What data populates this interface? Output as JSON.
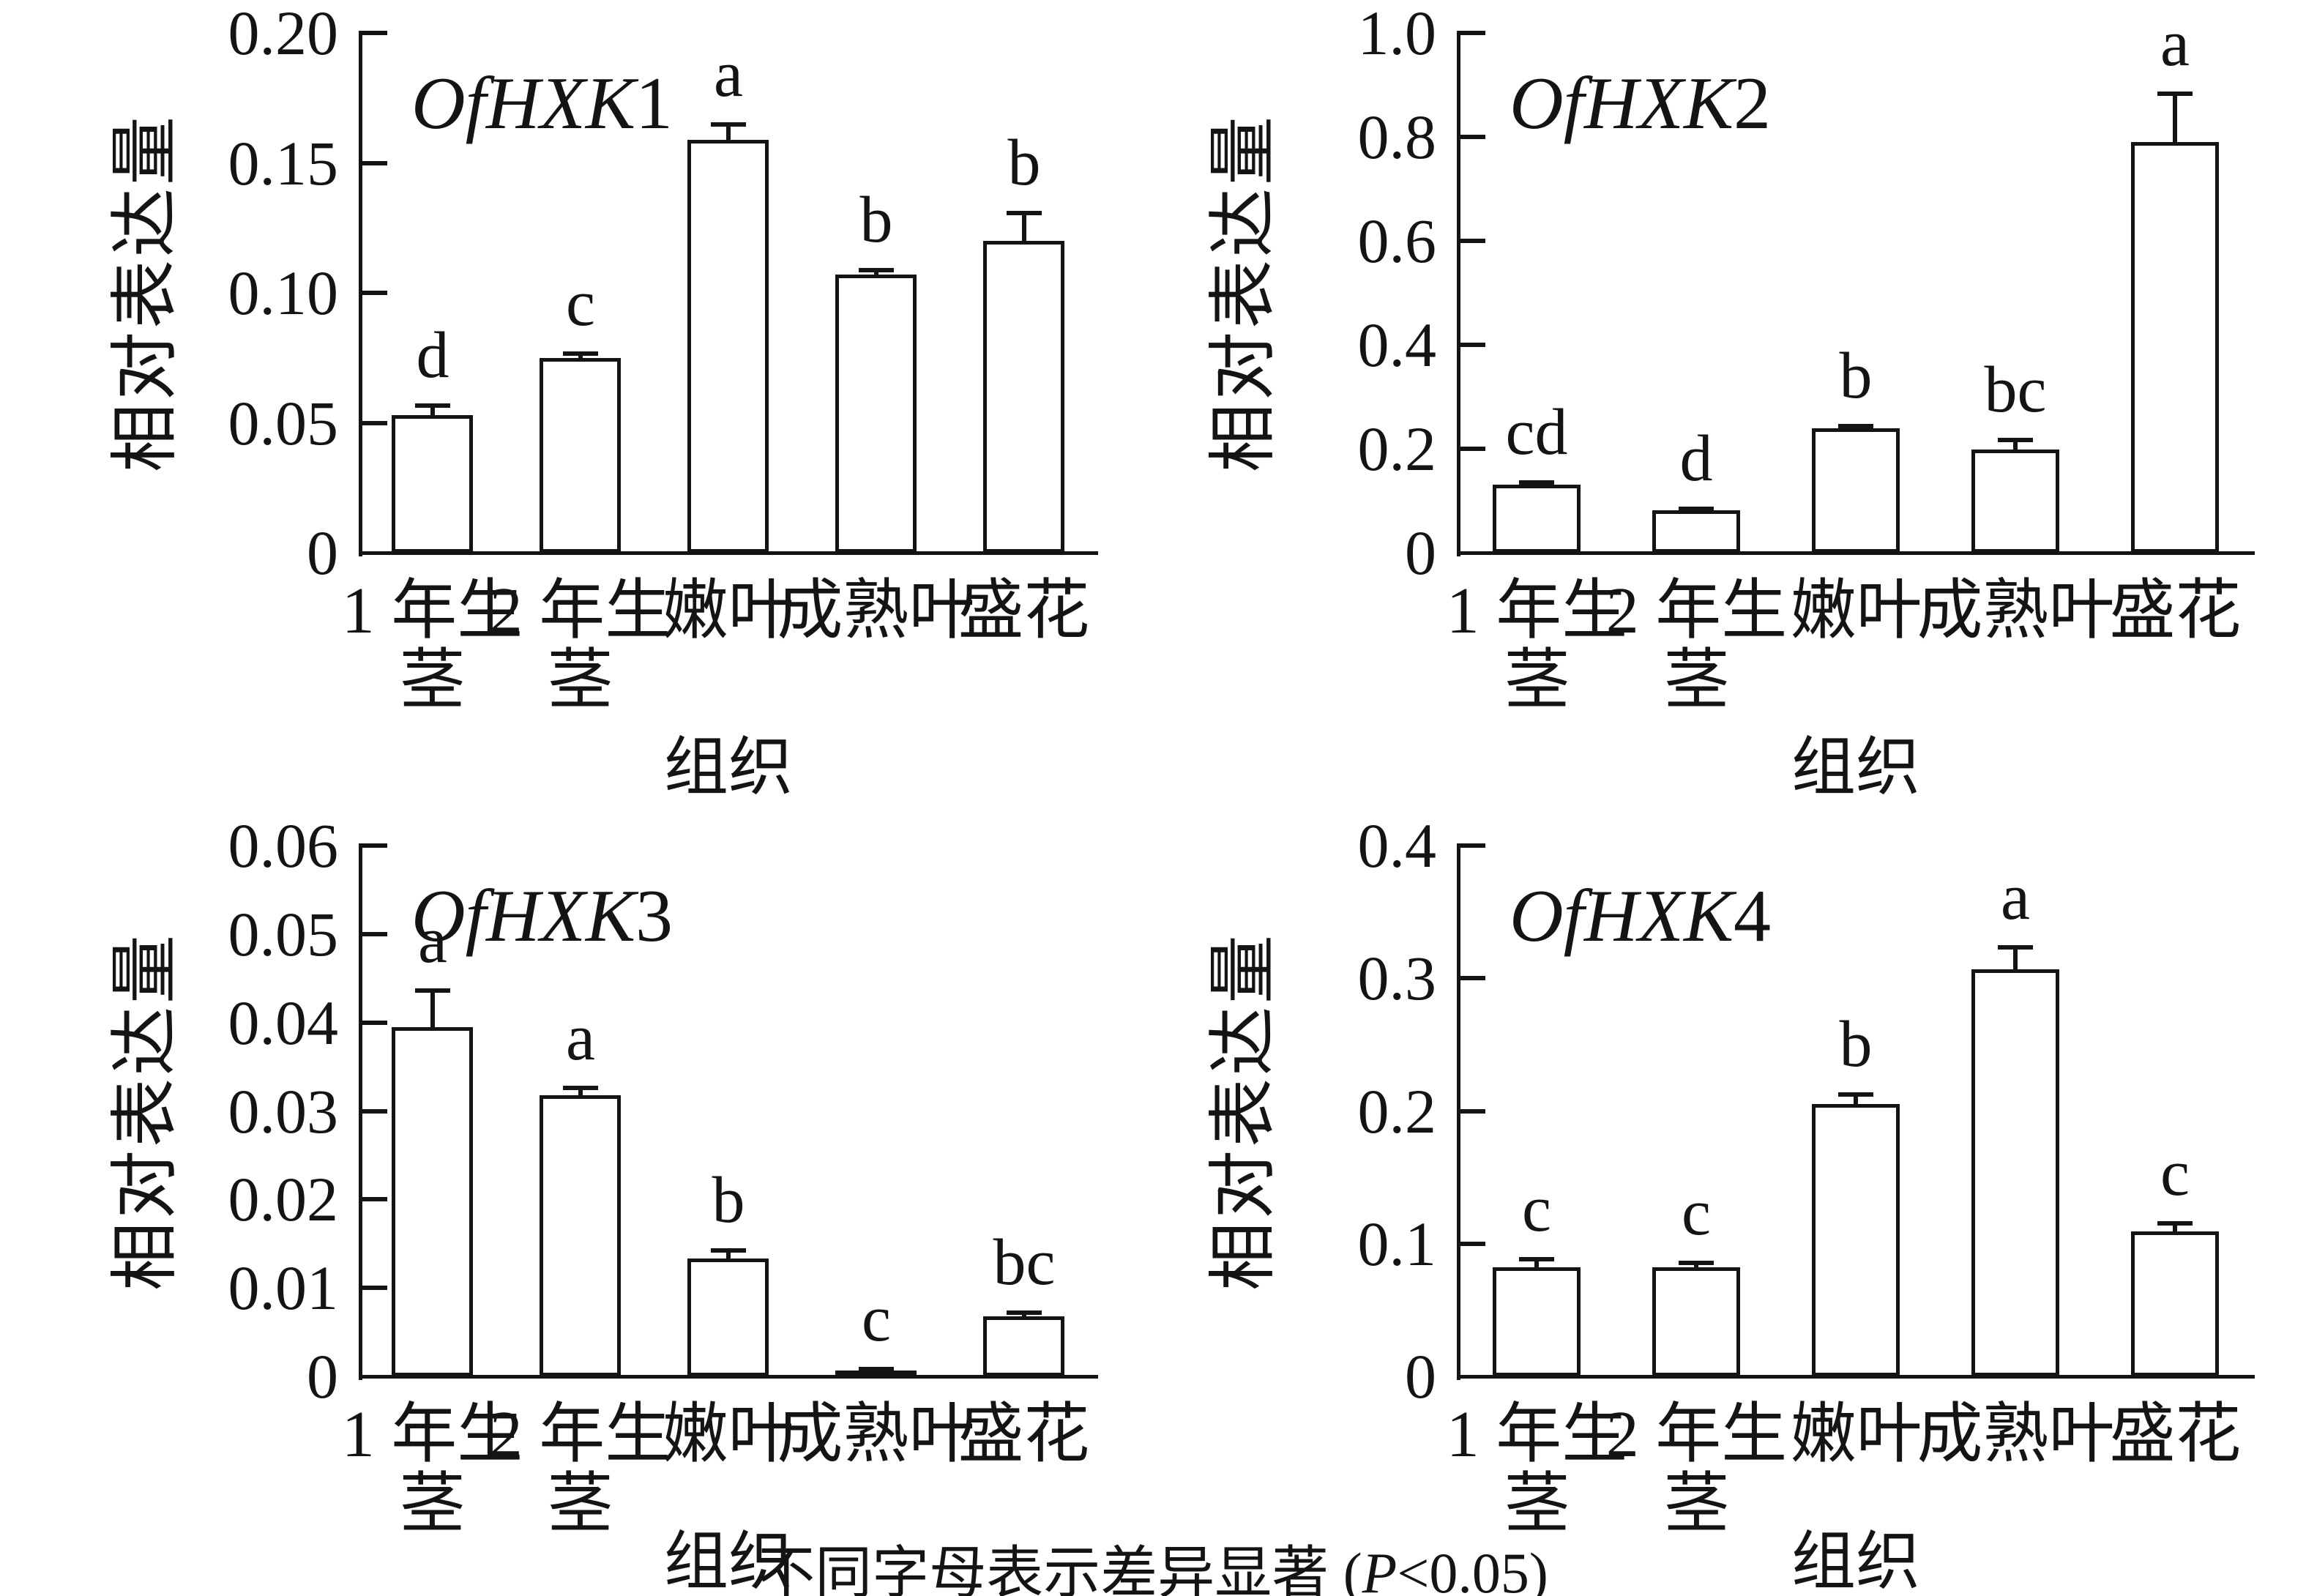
{
  "figure": {
    "background": "#ffffff",
    "ink_color": "#141414",
    "caption": {
      "prefix": "不同字母表示差异显著 (",
      "p": "P",
      "suffix": "<0.05)"
    }
  },
  "chart_data": [
    {
      "type": "bar",
      "title_italic": "OfHXK",
      "title_suffix": "1",
      "ylabel": "相对表达量",
      "xlabel": "组织",
      "ylim": [
        0,
        0.2
      ],
      "grid": false,
      "legend": null,
      "ytick_values": [
        0,
        0.05,
        0.1,
        0.15,
        0.2
      ],
      "ytick_labels": [
        "0",
        "0.05",
        "0.10",
        "0.15",
        "0.20"
      ],
      "categories": [
        "1 年生\n茎",
        "2 年生\n茎",
        "嫩叶",
        "成熟叶",
        "盛花"
      ],
      "values": [
        0.053,
        0.075,
        0.159,
        0.107,
        0.12
      ],
      "errors": [
        0.004,
        0.002,
        0.006,
        0.002,
        0.011
      ],
      "sig_letters": [
        "d",
        "c",
        "a",
        "b",
        "b"
      ]
    },
    {
      "type": "bar",
      "title_italic": "OfHXK",
      "title_suffix": "2",
      "ylabel": "相对表达量",
      "xlabel": "组织",
      "ylim": [
        0,
        1.0
      ],
      "grid": false,
      "legend": null,
      "ytick_values": [
        0,
        0.2,
        0.4,
        0.6,
        0.8,
        1.0
      ],
      "ytick_labels": [
        "0",
        "0.2",
        "0.4",
        "0.6",
        "0.8",
        "1.0"
      ],
      "categories": [
        "1 年生\n茎",
        "2 年生\n茎",
        "嫩叶",
        "成熟叶",
        "盛花"
      ],
      "values": [
        0.131,
        0.081,
        0.239,
        0.199,
        0.79
      ],
      "errors": [
        0.006,
        0.005,
        0.006,
        0.02,
        0.095
      ],
      "sig_letters": [
        "cd",
        "d",
        "b",
        "bc",
        "a"
      ]
    },
    {
      "type": "bar",
      "title_italic": "OfHXK",
      "title_suffix": "3",
      "ylabel": "相对表达量",
      "xlabel": "组织",
      "ylim": [
        0,
        0.06
      ],
      "grid": false,
      "legend": null,
      "ytick_values": [
        0,
        0.01,
        0.02,
        0.03,
        0.04,
        0.05,
        0.06
      ],
      "ytick_labels": [
        "0",
        "0.01",
        "0.02",
        "0.03",
        "0.04",
        "0.05",
        "0.06"
      ],
      "categories": [
        "1 年生\n茎",
        "2 年生\n茎",
        "嫩叶",
        "成熟叶",
        "盛花"
      ],
      "values": [
        0.0395,
        0.0318,
        0.0133,
        0.0007,
        0.0068
      ],
      "errors": [
        0.0042,
        0.0009,
        0.001,
        0.0002,
        0.0005
      ],
      "sig_letters": [
        "a",
        "a",
        "b",
        "c",
        "bc"
      ]
    },
    {
      "type": "bar",
      "title_italic": "OfHXK",
      "title_suffix": "4",
      "ylabel": "相对表达量",
      "xlabel": "组织",
      "ylim": [
        0,
        0.4
      ],
      "grid": false,
      "legend": null,
      "ytick_values": [
        0,
        0.1,
        0.2,
        0.3,
        0.4
      ],
      "ytick_labels": [
        "0",
        "0.1",
        "0.2",
        "0.3",
        "0.4"
      ],
      "categories": [
        "1 年生\n茎",
        "2 年生\n茎",
        "嫩叶",
        "成熟叶",
        "盛花"
      ],
      "values": [
        0.082,
        0.082,
        0.205,
        0.307,
        0.109
      ],
      "errors": [
        0.007,
        0.004,
        0.008,
        0.017,
        0.007
      ],
      "sig_letters": [
        "c",
        "c",
        "b",
        "a",
        "c"
      ]
    }
  ]
}
